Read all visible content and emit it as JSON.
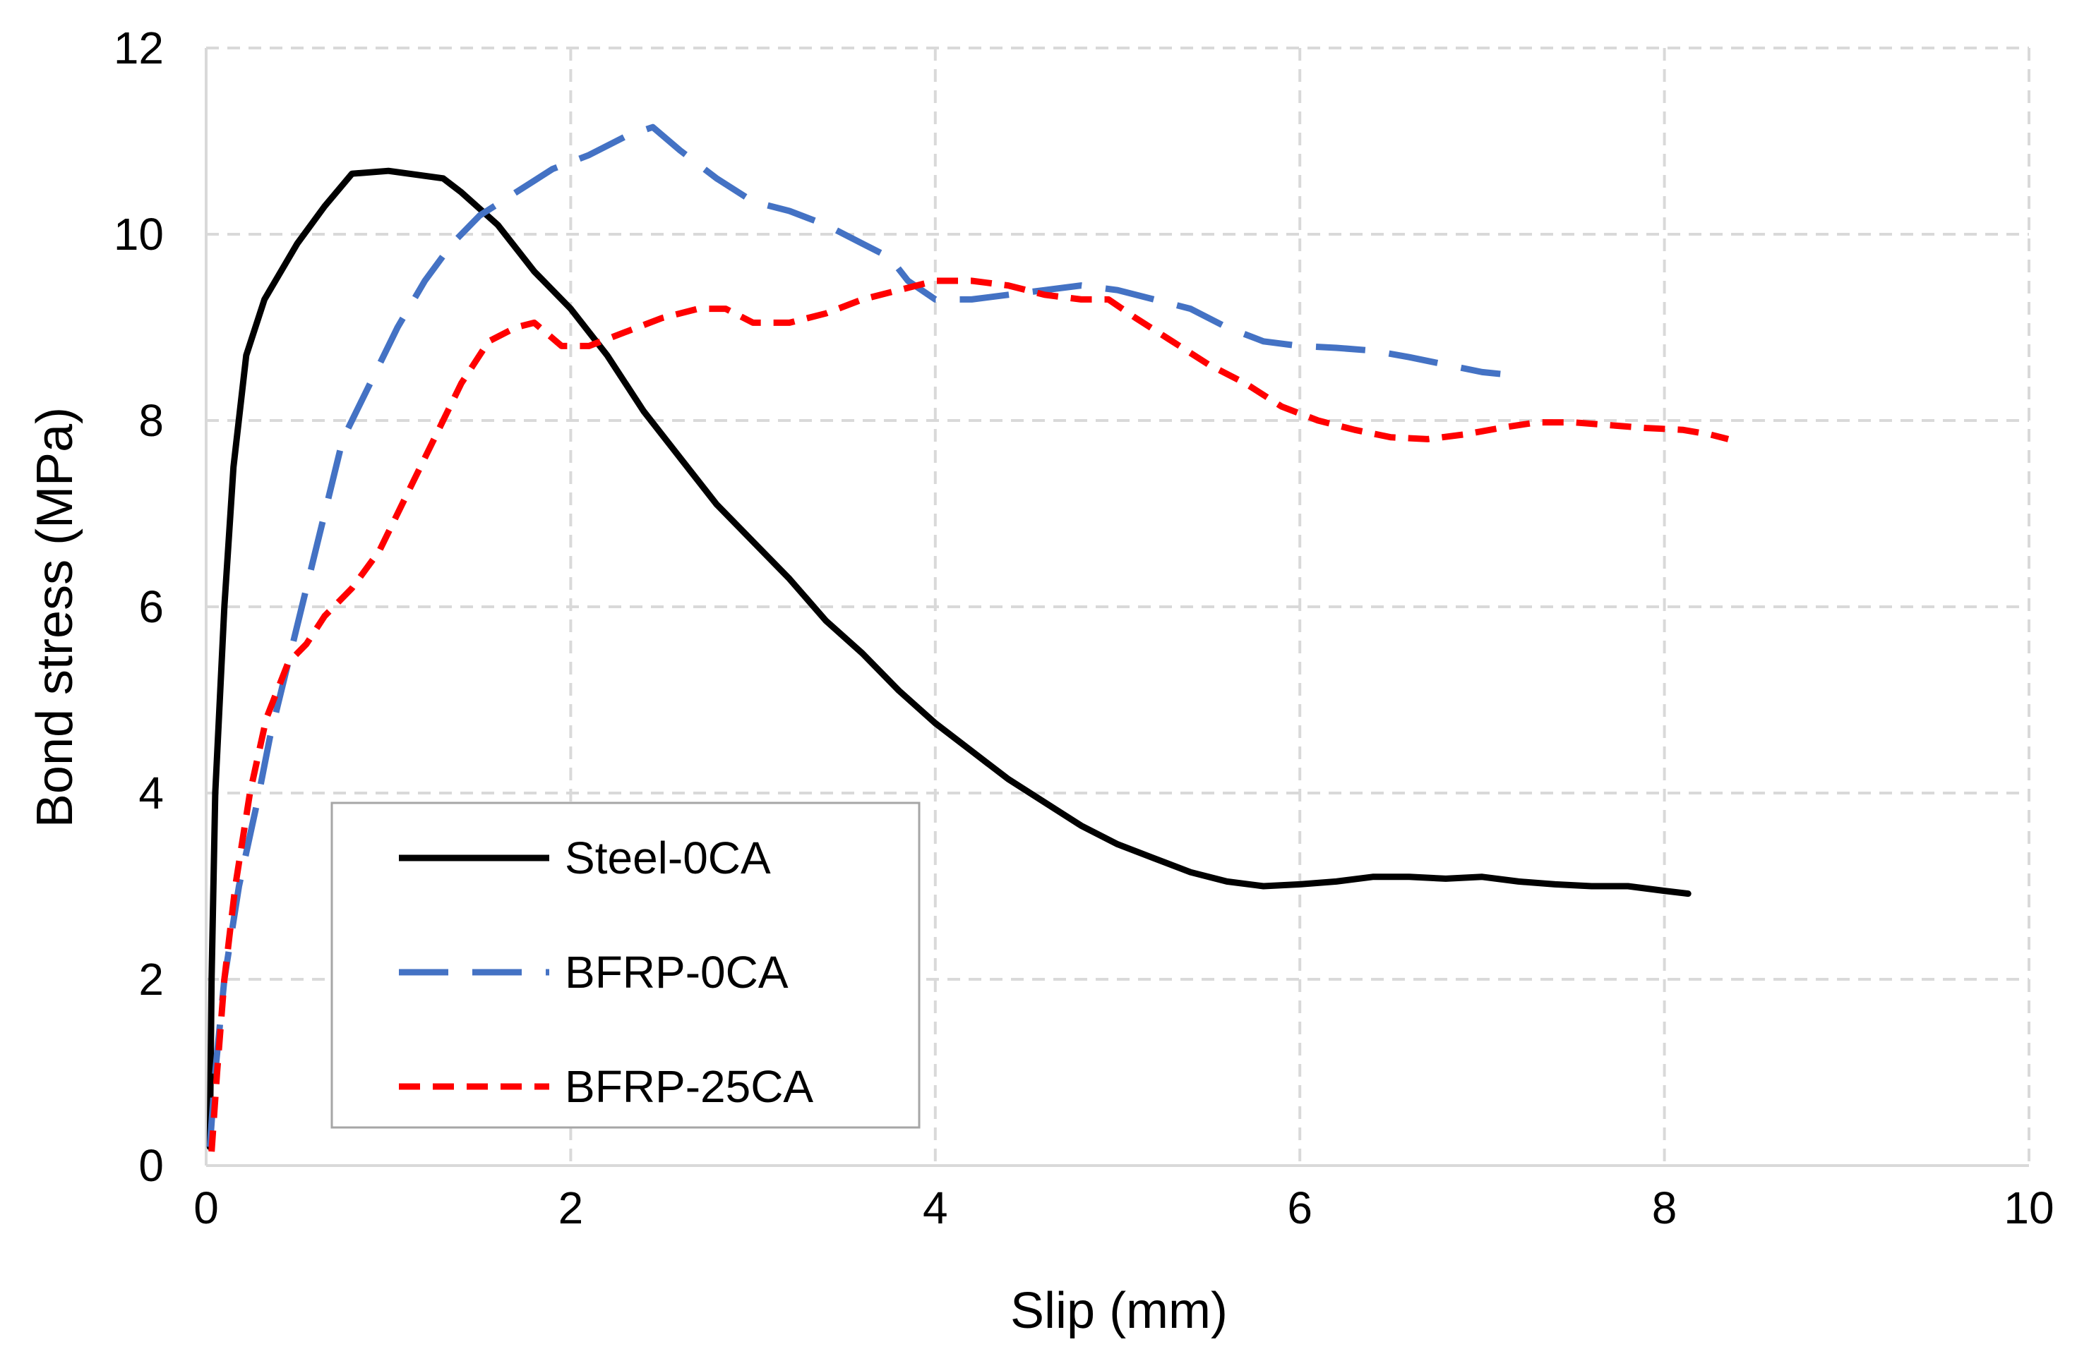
{
  "chart_data": {
    "type": "line",
    "title": "",
    "xlabel": "Slip (mm)",
    "ylabel": "Bond stress (MPa)",
    "xlim": [
      0,
      10
    ],
    "ylim": [
      0,
      12
    ],
    "x_ticks": [
      "0",
      "2",
      "4",
      "6",
      "8",
      "10"
    ],
    "y_ticks": [
      "0",
      "2",
      "4",
      "6",
      "8",
      "10",
      "12"
    ],
    "grid": true,
    "legend_position": "lower-left",
    "series": [
      {
        "name": "Steel-0CA",
        "color": "#000000",
        "line_style": "solid",
        "points": [
          [
            0.02,
            0.2
          ],
          [
            0.03,
            2.0
          ],
          [
            0.05,
            4.0
          ],
          [
            0.1,
            6.0
          ],
          [
            0.15,
            7.5
          ],
          [
            0.22,
            8.7
          ],
          [
            0.32,
            9.3
          ],
          [
            0.5,
            9.9
          ],
          [
            0.65,
            10.3
          ],
          [
            0.8,
            10.65
          ],
          [
            1.0,
            10.68
          ],
          [
            1.3,
            10.6
          ],
          [
            1.4,
            10.45
          ],
          [
            1.6,
            10.1
          ],
          [
            1.8,
            9.6
          ],
          [
            2.0,
            9.2
          ],
          [
            2.2,
            8.7
          ],
          [
            2.4,
            8.1
          ],
          [
            2.6,
            7.6
          ],
          [
            2.8,
            7.1
          ],
          [
            3.0,
            6.7
          ],
          [
            3.2,
            6.3
          ],
          [
            3.4,
            5.85
          ],
          [
            3.6,
            5.5
          ],
          [
            3.8,
            5.1
          ],
          [
            4.0,
            4.75
          ],
          [
            4.2,
            4.45
          ],
          [
            4.4,
            4.15
          ],
          [
            4.6,
            3.9
          ],
          [
            4.8,
            3.65
          ],
          [
            5.0,
            3.45
          ],
          [
            5.2,
            3.3
          ],
          [
            5.4,
            3.15
          ],
          [
            5.6,
            3.05
          ],
          [
            5.8,
            3.0
          ],
          [
            6.0,
            3.02
          ],
          [
            6.2,
            3.05
          ],
          [
            6.4,
            3.1
          ],
          [
            6.6,
            3.1
          ],
          [
            6.8,
            3.08
          ],
          [
            7.0,
            3.1
          ],
          [
            7.2,
            3.05
          ],
          [
            7.4,
            3.02
          ],
          [
            7.6,
            3.0
          ],
          [
            7.8,
            3.0
          ],
          [
            8.0,
            2.95
          ],
          [
            8.13,
            2.92
          ]
        ]
      },
      {
        "name": "BFRP-0CA",
        "color": "#4472C4",
        "line_style": "long-dash",
        "points": [
          [
            0.02,
            0.2
          ],
          [
            0.05,
            1.0
          ],
          [
            0.1,
            2.0
          ],
          [
            0.18,
            3.0
          ],
          [
            0.28,
            3.9
          ],
          [
            0.35,
            4.6
          ],
          [
            0.45,
            5.4
          ],
          [
            0.55,
            6.2
          ],
          [
            0.65,
            7.0
          ],
          [
            0.75,
            7.8
          ],
          [
            0.9,
            8.4
          ],
          [
            1.05,
            9.0
          ],
          [
            1.2,
            9.5
          ],
          [
            1.35,
            9.9
          ],
          [
            1.5,
            10.2
          ],
          [
            1.7,
            10.45
          ],
          [
            1.9,
            10.7
          ],
          [
            2.1,
            10.85
          ],
          [
            2.3,
            11.05
          ],
          [
            2.45,
            11.15
          ],
          [
            2.6,
            10.9
          ],
          [
            2.8,
            10.6
          ],
          [
            3.0,
            10.35
          ],
          [
            3.2,
            10.25
          ],
          [
            3.4,
            10.1
          ],
          [
            3.6,
            9.9
          ],
          [
            3.75,
            9.75
          ],
          [
            3.85,
            9.5
          ],
          [
            4.0,
            9.3
          ],
          [
            4.2,
            9.3
          ],
          [
            4.4,
            9.35
          ],
          [
            4.6,
            9.4
          ],
          [
            4.8,
            9.45
          ],
          [
            5.0,
            9.4
          ],
          [
            5.2,
            9.3
          ],
          [
            5.4,
            9.2
          ],
          [
            5.6,
            9.0
          ],
          [
            5.8,
            8.85
          ],
          [
            6.0,
            8.8
          ],
          [
            6.2,
            8.78
          ],
          [
            6.4,
            8.75
          ],
          [
            6.6,
            8.68
          ],
          [
            6.8,
            8.6
          ],
          [
            7.0,
            8.52
          ],
          [
            7.1,
            8.5
          ]
        ]
      },
      {
        "name": "BFRP-25CA",
        "color": "#FF0000",
        "line_style": "short-dash",
        "points": [
          [
            0.03,
            0.15
          ],
          [
            0.06,
            1.0
          ],
          [
            0.1,
            2.0
          ],
          [
            0.16,
            3.0
          ],
          [
            0.24,
            4.0
          ],
          [
            0.33,
            4.8
          ],
          [
            0.45,
            5.4
          ],
          [
            0.55,
            5.6
          ],
          [
            0.65,
            5.9
          ],
          [
            0.8,
            6.2
          ],
          [
            0.95,
            6.6
          ],
          [
            1.1,
            7.2
          ],
          [
            1.25,
            7.8
          ],
          [
            1.4,
            8.4
          ],
          [
            1.55,
            8.85
          ],
          [
            1.7,
            9.0
          ],
          [
            1.8,
            9.05
          ],
          [
            1.95,
            8.8
          ],
          [
            2.1,
            8.8
          ],
          [
            2.3,
            8.95
          ],
          [
            2.5,
            9.1
          ],
          [
            2.7,
            9.2
          ],
          [
            2.85,
            9.2
          ],
          [
            3.0,
            9.05
          ],
          [
            3.2,
            9.05
          ],
          [
            3.4,
            9.15
          ],
          [
            3.6,
            9.3
          ],
          [
            3.8,
            9.4
          ],
          [
            4.0,
            9.5
          ],
          [
            4.2,
            9.5
          ],
          [
            4.4,
            9.45
          ],
          [
            4.6,
            9.35
          ],
          [
            4.8,
            9.3
          ],
          [
            4.95,
            9.3
          ],
          [
            5.1,
            9.1
          ],
          [
            5.3,
            8.85
          ],
          [
            5.5,
            8.6
          ],
          [
            5.7,
            8.4
          ],
          [
            5.9,
            8.15
          ],
          [
            6.1,
            8.0
          ],
          [
            6.3,
            7.9
          ],
          [
            6.5,
            7.82
          ],
          [
            6.7,
            7.8
          ],
          [
            6.9,
            7.85
          ],
          [
            7.1,
            7.92
          ],
          [
            7.3,
            7.98
          ],
          [
            7.5,
            7.98
          ],
          [
            7.7,
            7.95
          ],
          [
            7.9,
            7.92
          ],
          [
            8.1,
            7.9
          ],
          [
            8.25,
            7.85
          ],
          [
            8.35,
            7.8
          ]
        ]
      }
    ]
  }
}
